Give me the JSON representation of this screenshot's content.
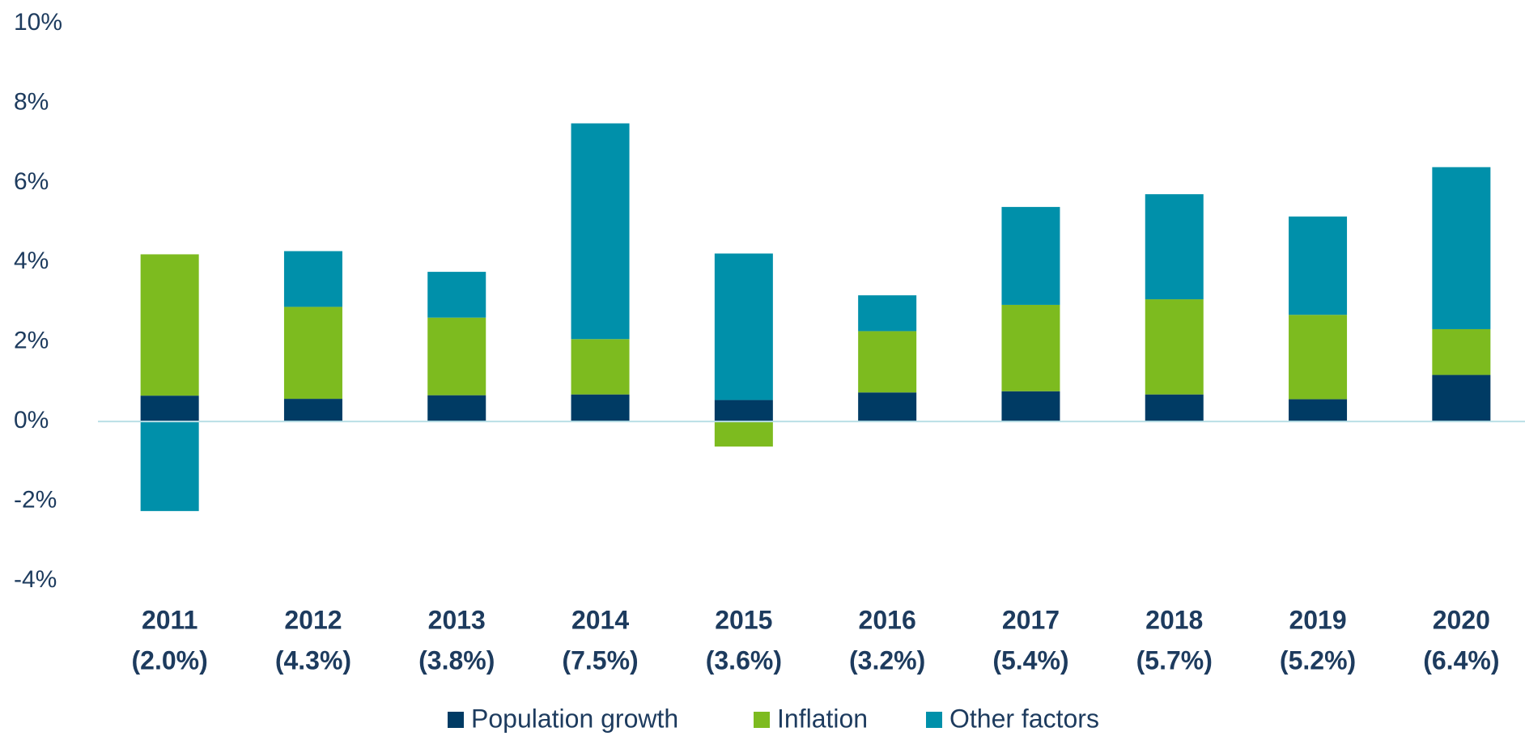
{
  "chart_data": {
    "type": "stacked_bar",
    "categories": [
      "2011",
      "2012",
      "2013",
      "2014",
      "2015",
      "2016",
      "2017",
      "2018",
      "2019",
      "2020"
    ],
    "category_sublabels": [
      "(2.0%)",
      "(4.3%)",
      "(3.8%)",
      "(7.5%)",
      "(3.6%)",
      "(3.2%)",
      "(5.4%)",
      "(5.7%)",
      "(5.2%)",
      "(6.4%)"
    ],
    "series": [
      {
        "name": "Population growth",
        "color": "#003b64",
        "values": [
          0.65,
          0.57,
          0.66,
          0.68,
          0.54,
          0.73,
          0.76,
          0.68,
          0.56,
          1.17
        ]
      },
      {
        "name": "Inflation",
        "color": "#7dbb1f",
        "values": [
          3.55,
          2.31,
          1.95,
          1.39,
          -0.63,
          1.54,
          2.17,
          2.39,
          2.12,
          1.15
        ]
      },
      {
        "name": "Other factors",
        "color": "#0090aa",
        "values": [
          -2.25,
          1.4,
          1.15,
          5.42,
          3.68,
          0.9,
          2.46,
          2.64,
          2.47,
          4.07
        ]
      }
    ],
    "ylim": [
      -4,
      10
    ],
    "yticks": [
      {
        "value": -4,
        "label": "-4%"
      },
      {
        "value": -2,
        "label": "-2%"
      },
      {
        "value": 0,
        "label": "0%"
      },
      {
        "value": 2,
        "label": "2%"
      },
      {
        "value": 4,
        "label": "4%"
      },
      {
        "value": 6,
        "label": "6%"
      },
      {
        "value": 8,
        "label": "8%"
      },
      {
        "value": 10,
        "label": "10%"
      }
    ],
    "grid": false,
    "legend": "bottom"
  }
}
